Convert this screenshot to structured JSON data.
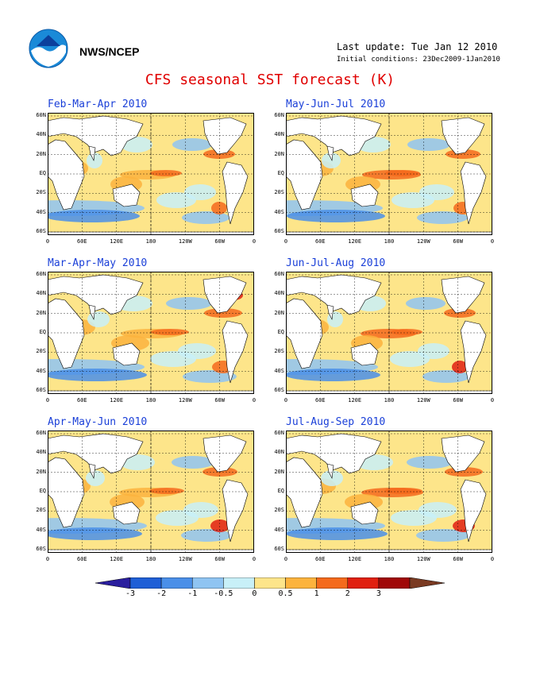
{
  "header": {
    "org": "NWS/NCEP",
    "last_update": "Last update: Tue Jan 12 2010",
    "initial_conditions": "Initial conditions: 23Dec2009-1Jan2010",
    "title": "CFS seasonal SST forecast (K)"
  },
  "panels": [
    {
      "title": "Feb-Mar-Apr 2010"
    },
    {
      "title": "May-Jun-Jul 2010"
    },
    {
      "title": "Mar-Apr-May 2010"
    },
    {
      "title": "Jun-Jul-Aug 2010"
    },
    {
      "title": "Apr-May-Jun 2010"
    },
    {
      "title": "Jul-Aug-Sep 2010"
    }
  ],
  "lat_labels": [
    "60N",
    "40N",
    "20N",
    "EQ",
    "20S",
    "40S",
    "60S"
  ],
  "lon_labels": [
    "0",
    "60E",
    "120E",
    "180",
    "120W",
    "60W",
    "0"
  ],
  "colorbar": {
    "labels": [
      "-3",
      "-2",
      "-1",
      "-0.5",
      "0",
      "0.5",
      "1",
      "2",
      "3"
    ],
    "colors": [
      "#2a1e9e",
      "#1f5fd6",
      "#4a8fe8",
      "#8fc4f2",
      "#c8f0f8",
      "#fde58a",
      "#fcb33d",
      "#f46a1c",
      "#e02010",
      "#a00808",
      "#7a3a22"
    ]
  }
}
